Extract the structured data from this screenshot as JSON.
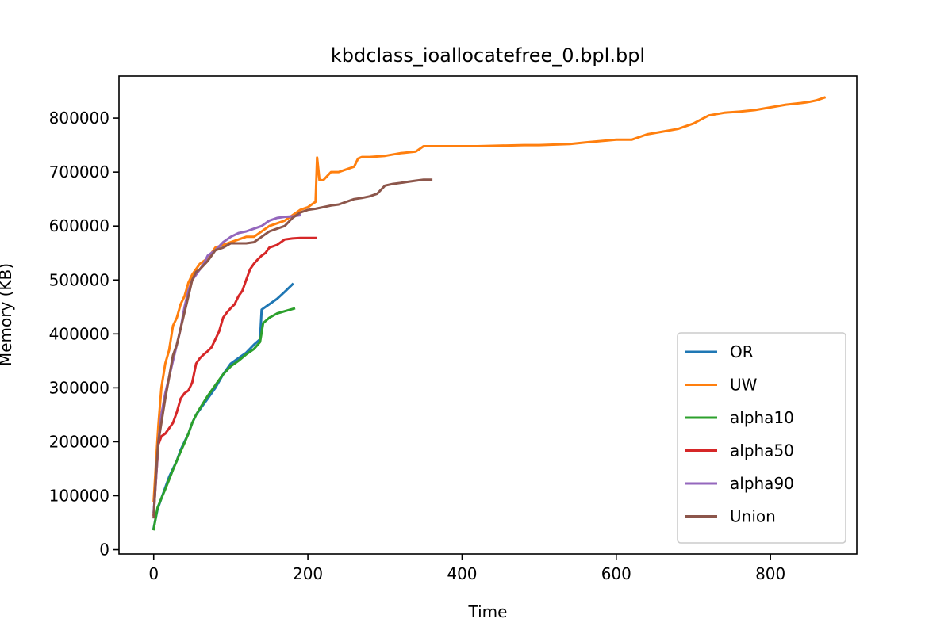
{
  "chart_data": {
    "type": "line",
    "title": "kbdclass_ioallocatefree_0.bpl.bpl",
    "xlabel": "Time",
    "ylabel": "Memory (KB)",
    "xlim": [
      -45,
      912
    ],
    "ylim": [
      -8000,
      878000
    ],
    "xticks": [
      0,
      200,
      400,
      600,
      800
    ],
    "yticks": [
      0,
      100000,
      200000,
      300000,
      400000,
      500000,
      600000,
      700000,
      800000
    ],
    "grid": false,
    "legend_position": "lower right",
    "series": [
      {
        "name": "OR",
        "color": "#1f77b4",
        "x": [
          0,
          5,
          10,
          15,
          20,
          25,
          30,
          35,
          40,
          45,
          50,
          55,
          60,
          70,
          80,
          90,
          100,
          110,
          120,
          130,
          138,
          140,
          150,
          160,
          170,
          180
        ],
        "y": [
          40000,
          75000,
          95000,
          115000,
          135000,
          150000,
          165000,
          185000,
          200000,
          215000,
          235000,
          250000,
          260000,
          280000,
          300000,
          325000,
          345000,
          355000,
          365000,
          380000,
          390000,
          445000,
          455000,
          465000,
          478000,
          492000
        ]
      },
      {
        "name": "UW",
        "color": "#ff7f0e",
        "x": [
          0,
          3,
          6,
          10,
          15,
          20,
          25,
          30,
          35,
          40,
          45,
          50,
          60,
          70,
          80,
          90,
          100,
          110,
          120,
          130,
          140,
          150,
          160,
          170,
          180,
          190,
          200,
          205,
          208,
          210,
          212,
          215,
          220,
          230,
          240,
          250,
          260,
          265,
          270,
          280,
          300,
          320,
          340,
          350,
          380,
          420,
          480,
          500,
          540,
          560,
          600,
          620,
          640,
          660,
          680,
          700,
          720,
          740,
          760,
          780,
          800,
          820,
          840,
          850,
          860,
          870
        ],
        "y": [
          90000,
          160000,
          230000,
          300000,
          345000,
          370000,
          415000,
          430000,
          455000,
          470000,
          495000,
          510000,
          530000,
          540000,
          560000,
          565000,
          570000,
          575000,
          580000,
          580000,
          590000,
          600000,
          605000,
          610000,
          620000,
          630000,
          635000,
          640000,
          643000,
          645000,
          727000,
          685000,
          685000,
          700000,
          700000,
          705000,
          710000,
          725000,
          728000,
          728000,
          730000,
          735000,
          738000,
          748000,
          748000,
          748000,
          750000,
          750000,
          752000,
          755000,
          760000,
          760000,
          770000,
          775000,
          780000,
          790000,
          805000,
          810000,
          812000,
          815000,
          820000,
          825000,
          828000,
          830000,
          833000,
          838000
        ]
      },
      {
        "name": "alpha10",
        "color": "#2ca02c",
        "x": [
          0,
          5,
          10,
          15,
          20,
          25,
          30,
          35,
          40,
          45,
          50,
          55,
          60,
          70,
          80,
          90,
          100,
          110,
          120,
          130,
          138,
          142,
          150,
          160,
          170,
          182
        ],
        "y": [
          38000,
          78000,
          95000,
          112000,
          130000,
          148000,
          165000,
          182000,
          198000,
          215000,
          235000,
          250000,
          262000,
          285000,
          305000,
          325000,
          340000,
          350000,
          362000,
          372000,
          385000,
          420000,
          430000,
          438000,
          442000,
          447000
        ]
      },
      {
        "name": "alpha50",
        "color": "#d62728",
        "x": [
          0,
          3,
          6,
          10,
          15,
          20,
          25,
          30,
          35,
          40,
          45,
          50,
          55,
          60,
          65,
          70,
          75,
          80,
          85,
          90,
          95,
          100,
          105,
          110,
          115,
          120,
          125,
          130,
          135,
          140,
          145,
          150,
          160,
          170,
          180,
          190,
          200,
          210
        ],
        "y": [
          65000,
          130000,
          195000,
          210000,
          215000,
          225000,
          235000,
          255000,
          280000,
          290000,
          295000,
          310000,
          345000,
          355000,
          362000,
          368000,
          375000,
          390000,
          405000,
          430000,
          440000,
          448000,
          455000,
          470000,
          480000,
          500000,
          520000,
          530000,
          538000,
          545000,
          550000,
          560000,
          565000,
          575000,
          577000,
          578000,
          578000,
          578000
        ]
      },
      {
        "name": "alpha90",
        "color": "#9467bd",
        "x": [
          0,
          3,
          6,
          10,
          15,
          20,
          25,
          30,
          35,
          40,
          45,
          50,
          55,
          60,
          65,
          70,
          75,
          80,
          90,
          100,
          110,
          120,
          130,
          140,
          150,
          160,
          170,
          180,
          190
        ],
        "y": [
          70000,
          130000,
          200000,
          250000,
          290000,
          320000,
          350000,
          380000,
          410000,
          450000,
          480000,
          500000,
          510000,
          520000,
          530000,
          545000,
          550000,
          555000,
          570000,
          580000,
          587000,
          590000,
          595000,
          600000,
          610000,
          615000,
          617000,
          618000,
          620000
        ]
      },
      {
        "name": "Union",
        "color": "#8c564b",
        "x": [
          0,
          3,
          6,
          10,
          15,
          20,
          25,
          30,
          35,
          40,
          45,
          50,
          55,
          60,
          70,
          80,
          90,
          100,
          110,
          120,
          130,
          140,
          150,
          160,
          170,
          180,
          190,
          200,
          210,
          220,
          230,
          240,
          250,
          260,
          270,
          280,
          290,
          300,
          310,
          320,
          330,
          340,
          350,
          360
        ],
        "y": [
          60000,
          140000,
          200000,
          235000,
          280000,
          320000,
          360000,
          380000,
          410000,
          440000,
          470000,
          500000,
          515000,
          520000,
          535000,
          555000,
          560000,
          568000,
          568000,
          568000,
          570000,
          580000,
          590000,
          595000,
          600000,
          615000,
          625000,
          630000,
          632000,
          635000,
          638000,
          640000,
          645000,
          650000,
          652000,
          655000,
          660000,
          675000,
          678000,
          680000,
          682000,
          684000,
          686000,
          686000
        ]
      }
    ]
  }
}
